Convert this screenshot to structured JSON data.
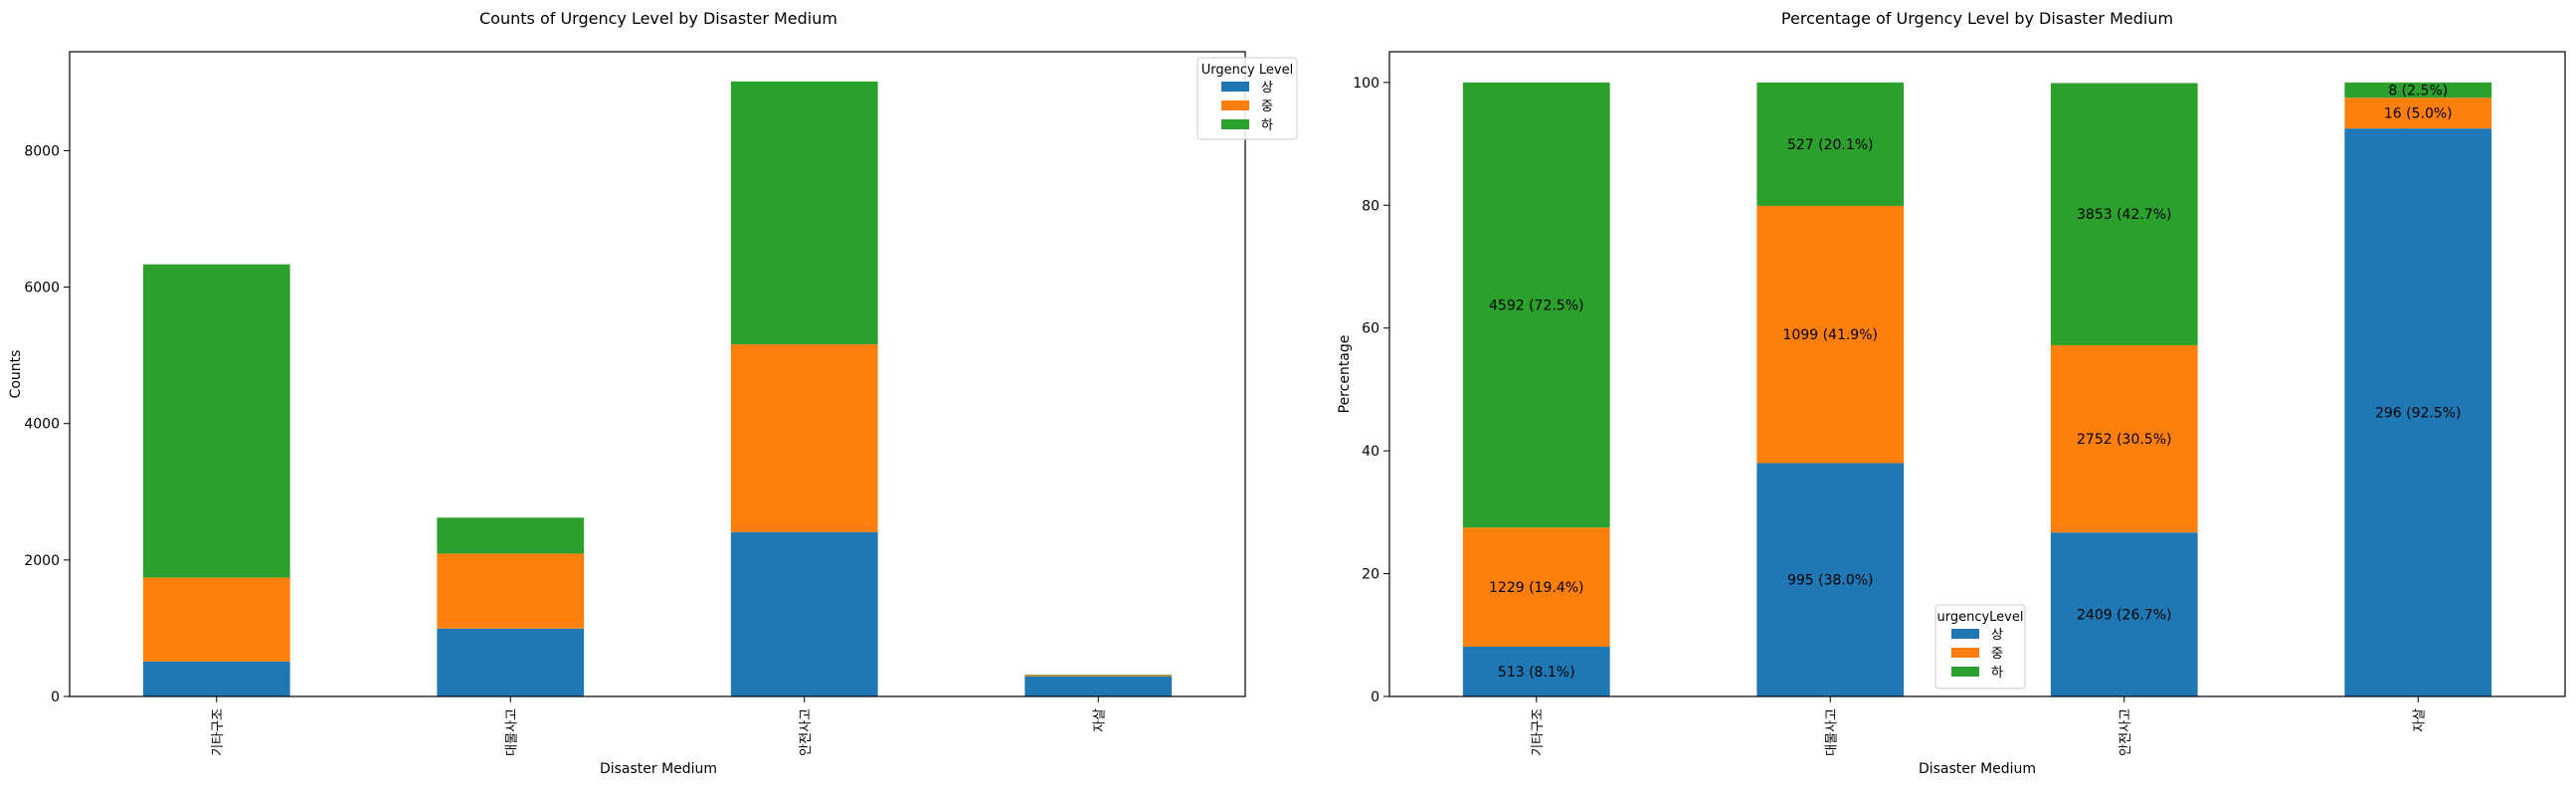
{
  "chart_data": [
    {
      "type": "bar",
      "stacked": true,
      "title": "Counts of Urgency Level by Disaster Medium",
      "xlabel": "Disaster Medium",
      "ylabel": "Counts",
      "ylim": [
        0,
        9450
      ],
      "yticks": [
        0,
        2000,
        4000,
        6000,
        8000
      ],
      "categories": [
        "기타구조",
        "대물사고",
        "안전사고",
        "자살"
      ],
      "series": [
        {
          "name": "상",
          "color": "#1f77b4",
          "values": [
            513,
            995,
            2409,
            296
          ]
        },
        {
          "name": "중",
          "color": "#ff7f0e",
          "values": [
            1229,
            1099,
            2752,
            16
          ]
        },
        {
          "name": "하",
          "color": "#2ca02c",
          "values": [
            4592,
            527,
            3853,
            8
          ]
        }
      ],
      "legend": {
        "title": "Urgency Level",
        "position": "top-right"
      },
      "grid": false
    },
    {
      "type": "bar",
      "stacked": true,
      "title": "Percentage of Urgency Level by Disaster Medium",
      "xlabel": "Disaster Medium",
      "ylabel": "Percentage",
      "ylim": [
        0,
        105
      ],
      "yticks": [
        0,
        20,
        40,
        60,
        80,
        100
      ],
      "categories": [
        "기타구조",
        "대물사고",
        "안전사고",
        "자살"
      ],
      "series": [
        {
          "name": "상",
          "color": "#1f77b4",
          "values": [
            8.1,
            38.0,
            26.7,
            92.5
          ],
          "labels": [
            "513 (8.1%)",
            "995 (38.0%)",
            "2409 (26.7%)",
            "296 (92.5%)"
          ]
        },
        {
          "name": "중",
          "color": "#ff7f0e",
          "values": [
            19.4,
            41.9,
            30.5,
            5.0
          ],
          "labels": [
            "1229 (19.4%)",
            "1099 (41.9%)",
            "2752 (30.5%)",
            "16 (5.0%)"
          ]
        },
        {
          "name": "하",
          "color": "#2ca02c",
          "values": [
            72.5,
            20.1,
            42.7,
            2.5
          ],
          "labels": [
            "4592 (72.5%)",
            "527 (20.1%)",
            "3853 (42.7%)",
            "8 (2.5%)"
          ]
        }
      ],
      "legend": {
        "title": "urgencyLevel",
        "position": "lower-center"
      },
      "grid": false
    }
  ]
}
